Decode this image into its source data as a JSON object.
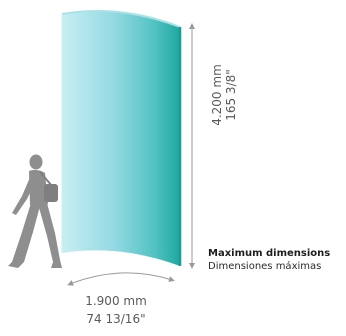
{
  "dimensions": {
    "width_metric": "1.900 mm",
    "width_imperial": "74 13/16\"",
    "height_metric": "4.200 mm",
    "height_imperial": "165 3/8\""
  },
  "caption": {
    "title": "Maximum dimensions",
    "subtitle": "Dimensiones máximas"
  },
  "colors": {
    "panel_light": "#bfe9ef",
    "panel_mid": "#7fd0dc",
    "panel_dark": "#1ea7a0",
    "edge": "#159e98",
    "arrow": "#9a9a9a",
    "figure": "#8e8e8e"
  },
  "icons": {
    "figure": "walking-person-with-bag-icon"
  }
}
